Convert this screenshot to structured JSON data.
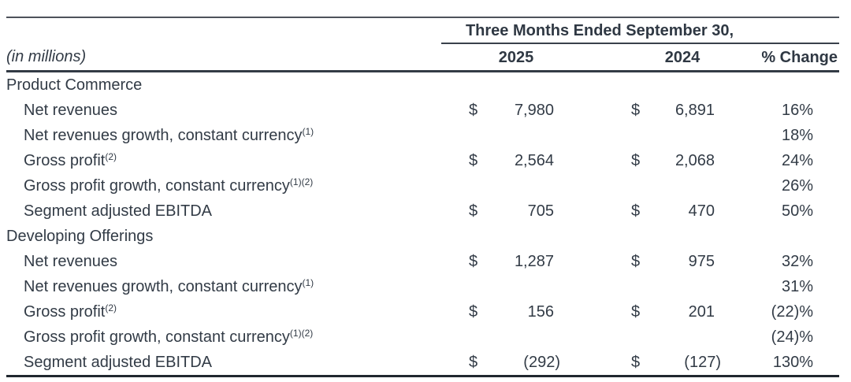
{
  "table": {
    "period_header": "Three Months Ended September 30,",
    "unit_label": "(in millions)",
    "columns": {
      "y2025": "2025",
      "y2024": "2024",
      "change": "% Change"
    },
    "text_color": "#323b46",
    "rule_color": "#333b45",
    "sections": [
      {
        "title": "Product Commerce",
        "rows": [
          {
            "label": "Net revenues",
            "sup": "",
            "cur2025": "$",
            "v2025": "7,980",
            "cur2024": "$",
            "v2024": "6,891",
            "change": "16%"
          },
          {
            "label": "Net revenues growth, constant currency",
            "sup": "(1)",
            "cur2025": "",
            "v2025": "",
            "cur2024": "",
            "v2024": "",
            "change": "18%"
          },
          {
            "label": "Gross profit",
            "sup": "(2)",
            "cur2025": "$",
            "v2025": "2,564",
            "cur2024": "$",
            "v2024": "2,068",
            "change": "24%"
          },
          {
            "label": "Gross profit growth, constant currency",
            "sup": "(1)(2)",
            "cur2025": "",
            "v2025": "",
            "cur2024": "",
            "v2024": "",
            "change": "26%"
          },
          {
            "label": "Segment adjusted EBITDA",
            "sup": "",
            "cur2025": "$",
            "v2025": "705",
            "cur2024": "$",
            "v2024": "470",
            "change": "50%"
          }
        ]
      },
      {
        "title": "Developing Offerings",
        "rows": [
          {
            "label": "Net revenues",
            "sup": "",
            "cur2025": "$",
            "v2025": "1,287",
            "cur2024": "$",
            "v2024": "975",
            "change": "32%"
          },
          {
            "label": "Net revenues growth, constant currency",
            "sup": "(1)",
            "cur2025": "",
            "v2025": "",
            "cur2024": "",
            "v2024": "",
            "change": "31%"
          },
          {
            "label": "Gross profit",
            "sup": "(2)",
            "cur2025": "$",
            "v2025": "156",
            "cur2024": "$",
            "v2024": "201",
            "change": "(22)%"
          },
          {
            "label": "Gross profit growth, constant currency",
            "sup": "(1)(2)",
            "cur2025": "",
            "v2025": "",
            "cur2024": "",
            "v2024": "",
            "change": "(24)%"
          },
          {
            "label": "Segment adjusted EBITDA",
            "sup": "",
            "cur2025": "$",
            "v2025": "(292)",
            "cur2024": "$",
            "v2024": "(127)",
            "change": "130%"
          }
        ]
      }
    ]
  }
}
